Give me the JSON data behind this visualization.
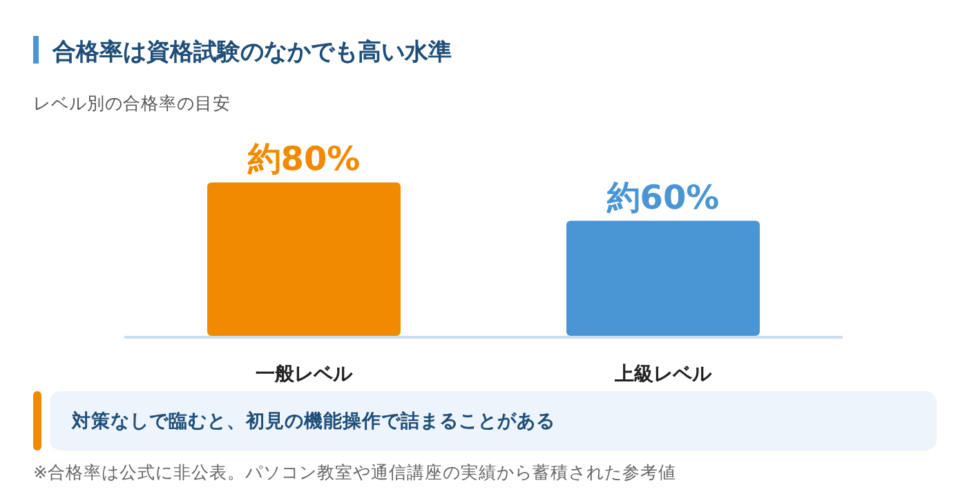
{
  "chart_data": {
    "type": "bar",
    "title": "合格率は資格試験のなかでも高い水準",
    "subtitle": "レベル別の合格率の目安",
    "categories": [
      "一般レベル",
      "上級レベル"
    ],
    "values": [
      80,
      60
    ],
    "colors": [
      "#f28a00",
      "#4a95d3"
    ],
    "value_labels": [
      "約80%",
      "約60%"
    ],
    "annotations": [
      "対策なしで臨むと、初見の機能操作で詰まることがある",
      "※合格率は公式に非公表。パソコン教室や通信講座の実績から蓄積された参考値"
    ]
  }
}
